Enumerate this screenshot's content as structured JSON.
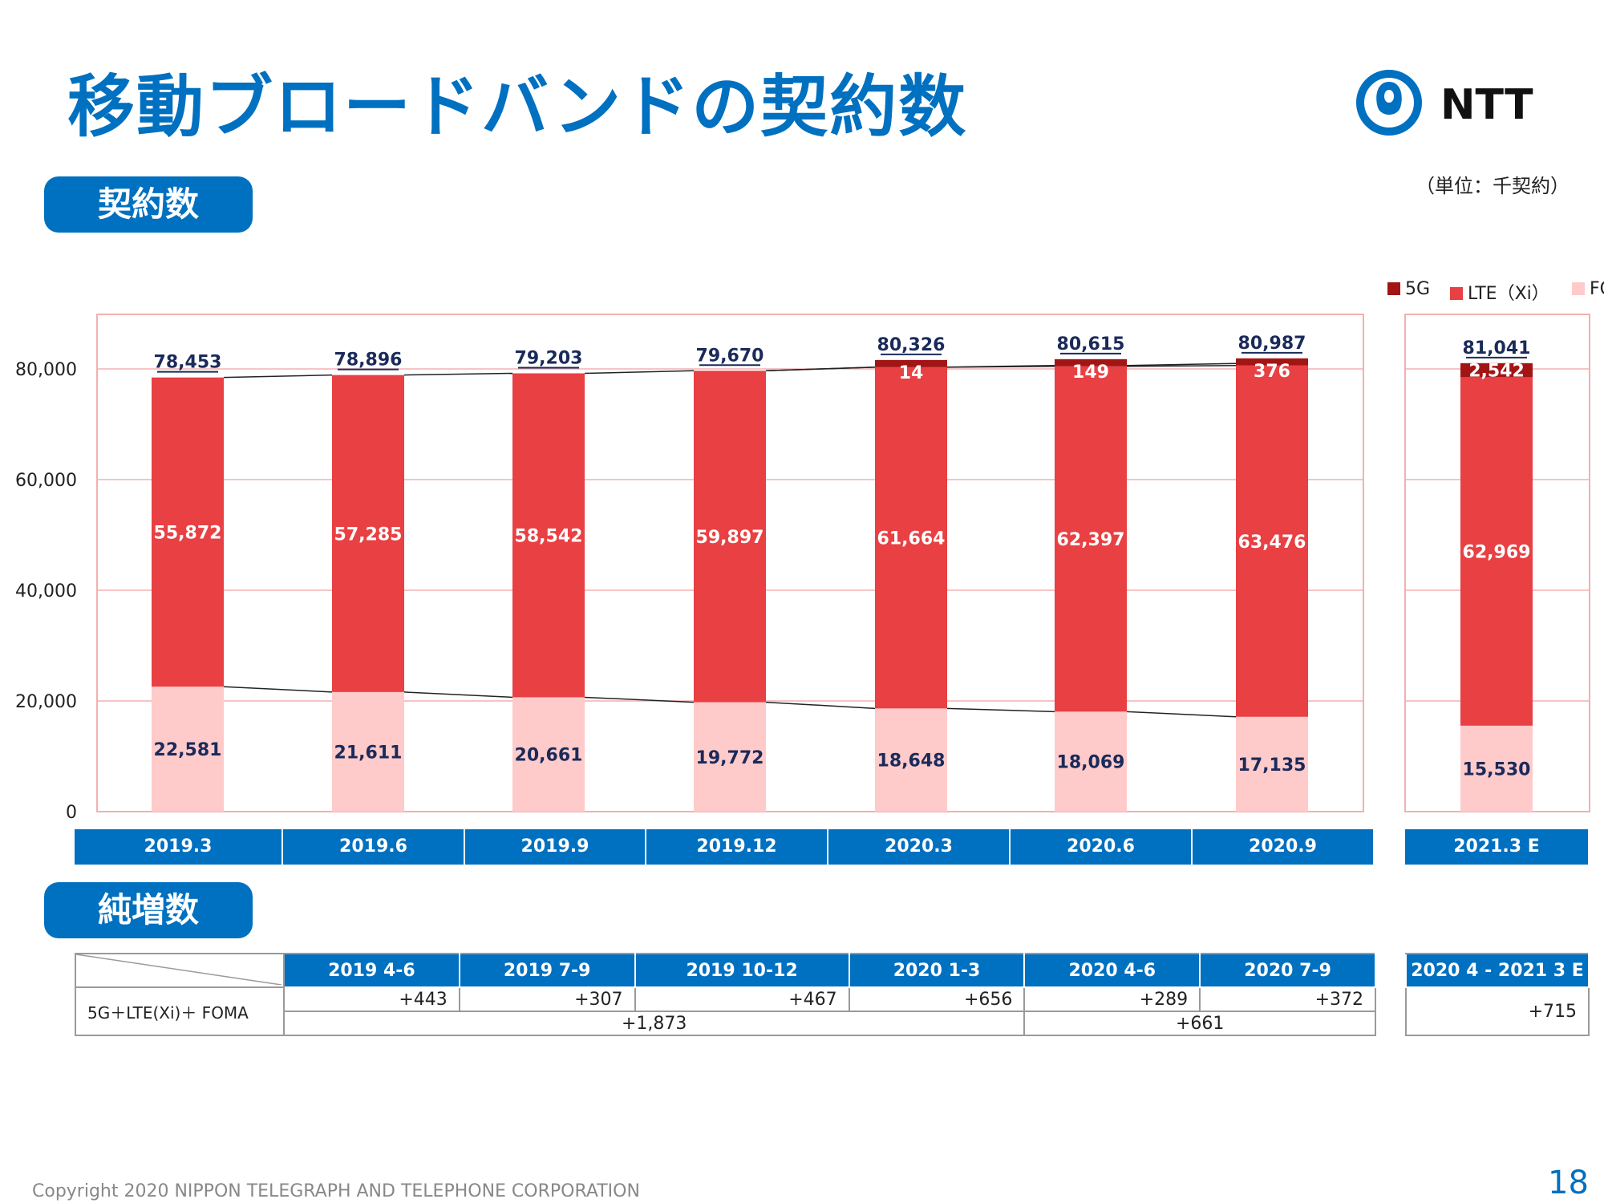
{
  "title": "移動ブロードバンドの契約数",
  "logo_text": "NTT",
  "unit_label": "（単位：千契約）",
  "section_contracts": "契約数",
  "section_net_additions": "純増数",
  "legend": [
    {
      "label": "5G",
      "color": "#A31515"
    },
    {
      "label": "LTE（Xi）",
      "color": "#E84043"
    },
    {
      "label": "FOMA",
      "color": "#FFCACA"
    }
  ],
  "chart_data": {
    "type": "bar",
    "stacked": true,
    "categories": [
      "2019.3",
      "2019.6",
      "2019.9",
      "2019.12",
      "2020.3",
      "2020.6",
      "2020.9",
      "2021.3 E"
    ],
    "series": [
      {
        "name": "FOMA",
        "values": [
          22581,
          21611,
          20661,
          19772,
          18648,
          18069,
          17135,
          15530
        ],
        "color": "#FFCACA"
      },
      {
        "name": "LTE（Xi）",
        "values": [
          55872,
          57285,
          58542,
          59897,
          61664,
          62397,
          63476,
          62969
        ],
        "color": "#E84043"
      },
      {
        "name": "5G",
        "values": [
          0,
          0,
          0,
          0,
          14,
          149,
          376,
          2542
        ],
        "color": "#A31515"
      }
    ],
    "totals": [
      78453,
      78896,
      79203,
      79670,
      80326,
      80615,
      80987,
      81041
    ],
    "value_labels": {
      "FOMA": [
        "22,581",
        "21,611",
        "20,661",
        "19,772",
        "18,648",
        "18,069",
        "17,135",
        "15,530"
      ],
      "LTE": [
        "55,872",
        "57,285",
        "58,542",
        "59,897",
        "61,664",
        "62,397",
        "63,476",
        "62,969"
      ],
      "5G": [
        "",
        "",
        "",
        "",
        "14",
        "149",
        "376",
        "2,542"
      ],
      "totals": [
        "78,453",
        "78,896",
        "79,203",
        "79,670",
        "80,326",
        "80,615",
        "80,987",
        "81,041"
      ]
    },
    "yticks": [
      "0",
      "20,000",
      "40,000",
      "60,000",
      "80,000"
    ],
    "ylim": [
      0,
      80000
    ],
    "grid": true,
    "legend_position": "top-right"
  },
  "net_additions": {
    "headers": [
      "2019 4-6",
      "2019 7-9",
      "2019 10-12",
      "2020 1-3",
      "2020 4-6",
      "2020 7-9"
    ],
    "row_label": "5G＋LTE(Xi)＋ FOMA",
    "quarterly": [
      "+443",
      "+307",
      "+467",
      "+656",
      "+289",
      "+372"
    ],
    "fiscal_2019": "+1,873",
    "fiscal_2020": "+661",
    "forecast_header": "2020 4 - 2021 3 E",
    "forecast_value": "+715"
  },
  "footer": "Copyright 2020 NIPPON TELEGRAPH AND TELEPHONE CORPORATION",
  "page_number": "18"
}
